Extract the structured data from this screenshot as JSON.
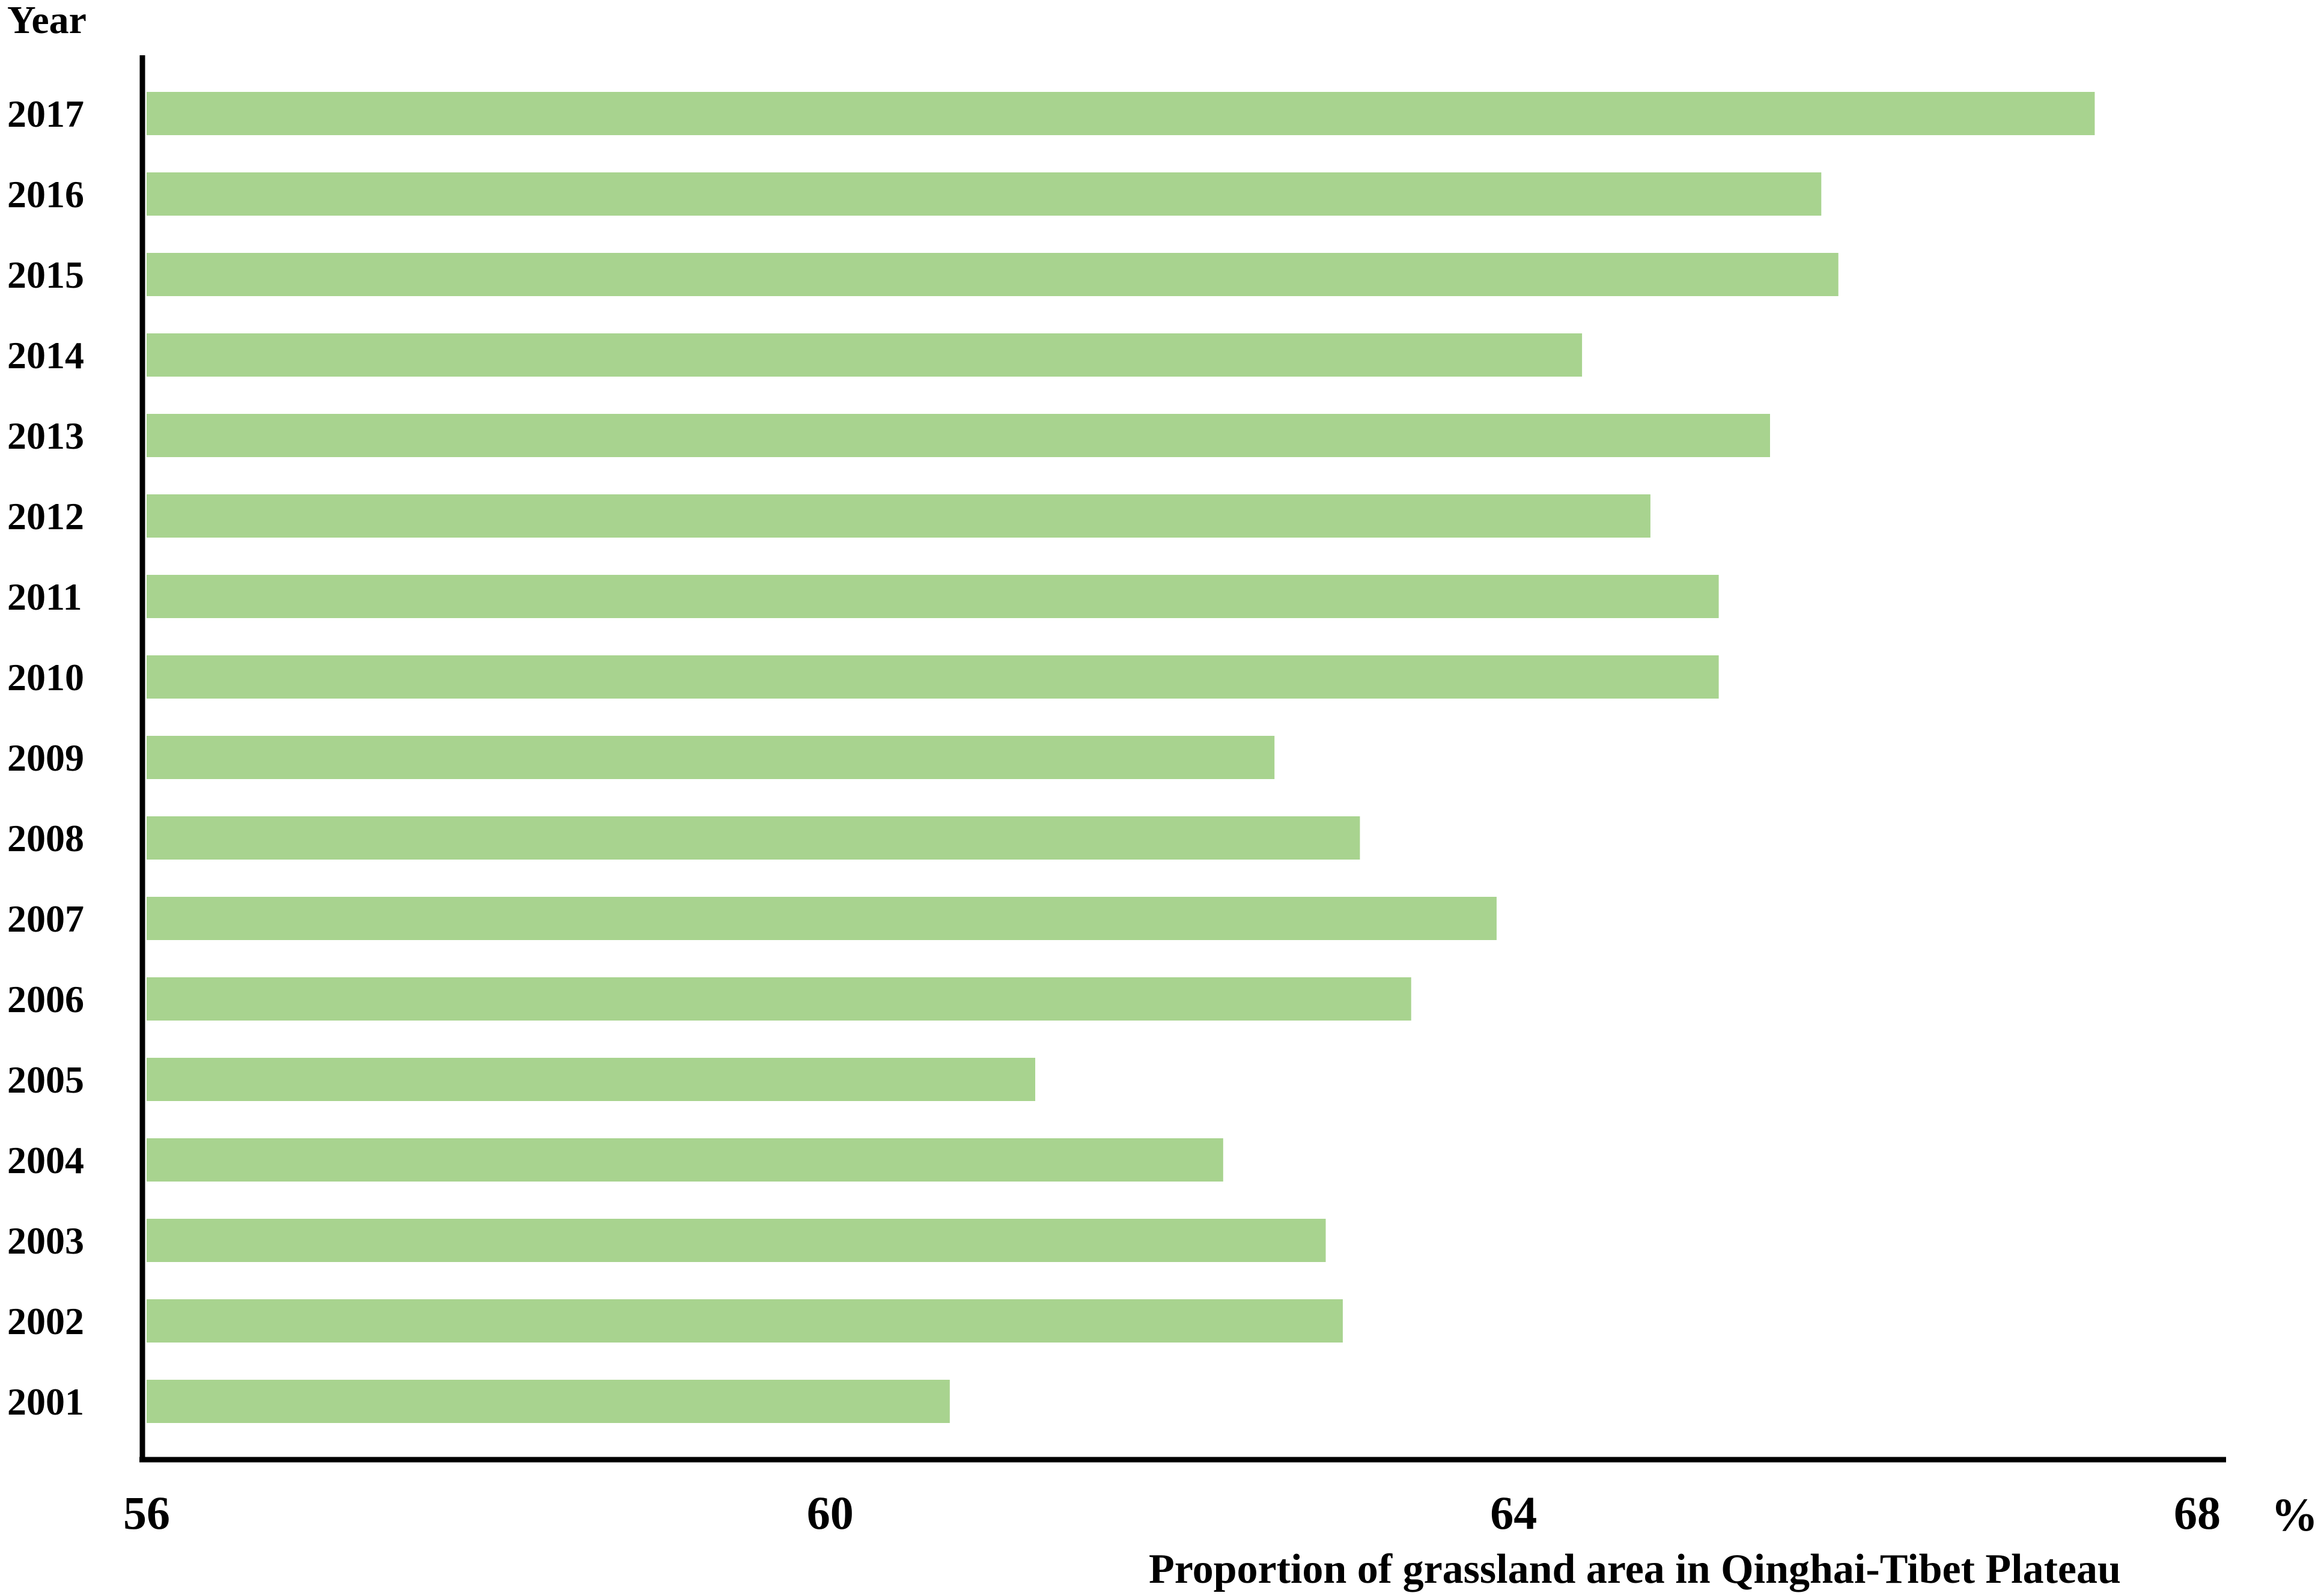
{
  "chart_data": {
    "type": "bar",
    "orientation": "horizontal",
    "ytitle": "Year",
    "xlabel": "Proportion of grassland area in Qinghai-Tibet Plateau",
    "xunit": "%",
    "xlim": [
      56,
      68
    ],
    "xticks": [
      "56",
      "60",
      "64",
      "68"
    ],
    "grid": false,
    "bar_color": "#a8d38f",
    "categories": [
      "2017",
      "2016",
      "2015",
      "2014",
      "2013",
      "2012",
      "2011",
      "2010",
      "2009",
      "2008",
      "2007",
      "2006",
      "2005",
      "2004",
      "2003",
      "2002",
      "2001"
    ],
    "values": [
      67.4,
      65.8,
      65.9,
      64.4,
      65.5,
      64.8,
      65.2,
      65.2,
      62.6,
      63.1,
      63.9,
      63.4,
      61.2,
      62.3,
      62.9,
      63.0,
      60.7
    ]
  }
}
